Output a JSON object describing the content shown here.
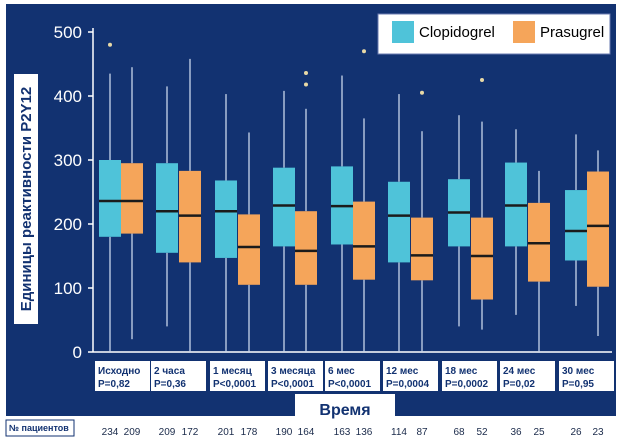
{
  "chart_data": {
    "type": "box",
    "ylabel": "Единицы реактивности P2Y12",
    "xlabel": "Время",
    "ylim": [
      0,
      500
    ],
    "yticks": [
      "0",
      "100",
      "200",
      "300",
      "400",
      "500"
    ],
    "legend": {
      "position": "top-right"
    },
    "series": [
      {
        "name": "Clopidogrel",
        "color": "#4fc3d9"
      },
      {
        "name": "Prasugrel",
        "color": "#f5a55a"
      }
    ],
    "groups": [
      {
        "label": "Исходно",
        "pvalue": "P=0,82",
        "counts": [
          "234",
          "209"
        ],
        "clopidogrel": {
          "min": 0,
          "q1": 180,
          "median": 236,
          "q3": 300,
          "max": 435,
          "outliers": [
            480
          ]
        },
        "prasugrel": {
          "min": 20,
          "q1": 185,
          "median": 236,
          "q3": 295,
          "max": 445,
          "outliers": []
        }
      },
      {
        "label": "2 часа",
        "pvalue": "P=0,36",
        "counts": [
          "209",
          "172"
        ],
        "clopidogrel": {
          "min": 40,
          "q1": 155,
          "median": 220,
          "q3": 295,
          "max": 415,
          "outliers": []
        },
        "prasugrel": {
          "min": 0,
          "q1": 140,
          "median": 213,
          "q3": 283,
          "max": 458,
          "outliers": []
        }
      },
      {
        "label": "1 месяц",
        "pvalue": "P<0,0001",
        "counts": [
          "201",
          "178"
        ],
        "clopidogrel": {
          "min": 0,
          "q1": 147,
          "median": 220,
          "q3": 268,
          "max": 403,
          "outliers": []
        },
        "prasugrel": {
          "min": 0,
          "q1": 105,
          "median": 164,
          "q3": 215,
          "max": 343,
          "outliers": []
        }
      },
      {
        "label": "3 месяца",
        "pvalue": "P<0,0001",
        "counts": [
          "190",
          "164"
        ],
        "clopidogrel": {
          "min": 0,
          "q1": 165,
          "median": 229,
          "q3": 288,
          "max": 408,
          "outliers": []
        },
        "prasugrel": {
          "min": 0,
          "q1": 105,
          "median": 158,
          "q3": 220,
          "max": 380,
          "outliers": [
            418,
            436
          ]
        }
      },
      {
        "label": "6 мес",
        "pvalue": "P<0,0001",
        "counts": [
          "163",
          "136"
        ],
        "clopidogrel": {
          "min": 0,
          "q1": 168,
          "median": 228,
          "q3": 290,
          "max": 432,
          "outliers": []
        },
        "prasugrel": {
          "min": 0,
          "q1": 113,
          "median": 165,
          "q3": 235,
          "max": 365,
          "outliers": [
            470
          ]
        }
      },
      {
        "label": "12 мес",
        "pvalue": "P=0,0004",
        "counts": [
          "114",
          "87"
        ],
        "clopidogrel": {
          "min": 0,
          "q1": 140,
          "median": 213,
          "q3": 266,
          "max": 403,
          "outliers": []
        },
        "prasugrel": {
          "min": 0,
          "q1": 112,
          "median": 151,
          "q3": 210,
          "max": 345,
          "outliers": [
            405
          ]
        }
      },
      {
        "label": "18 мес",
        "pvalue": "P=0,0002",
        "counts": [
          "68",
          "52"
        ],
        "clopidogrel": {
          "min": 40,
          "q1": 165,
          "median": 218,
          "q3": 270,
          "max": 370,
          "outliers": []
        },
        "prasugrel": {
          "min": 35,
          "q1": 82,
          "median": 150,
          "q3": 210,
          "max": 360,
          "outliers": [
            425
          ]
        }
      },
      {
        "label": "24 мес",
        "pvalue": "P=0,02",
        "counts": [
          "36",
          "25"
        ],
        "clopidogrel": {
          "min": 58,
          "q1": 165,
          "median": 229,
          "q3": 296,
          "max": 348,
          "outliers": []
        },
        "prasugrel": {
          "min": 0,
          "q1": 110,
          "median": 170,
          "q3": 233,
          "max": 283,
          "outliers": []
        }
      },
      {
        "label": "30 мес",
        "pvalue": "P=0,95",
        "counts": [
          "26",
          "23"
        ],
        "clopidogrel": {
          "min": 72,
          "q1": 143,
          "median": 189,
          "q3": 253,
          "max": 340,
          "outliers": []
        },
        "prasugrel": {
          "min": 25,
          "q1": 102,
          "median": 197,
          "q3": 282,
          "max": 315,
          "outliers": []
        }
      }
    ],
    "patients_label": "№ пациентов"
  }
}
